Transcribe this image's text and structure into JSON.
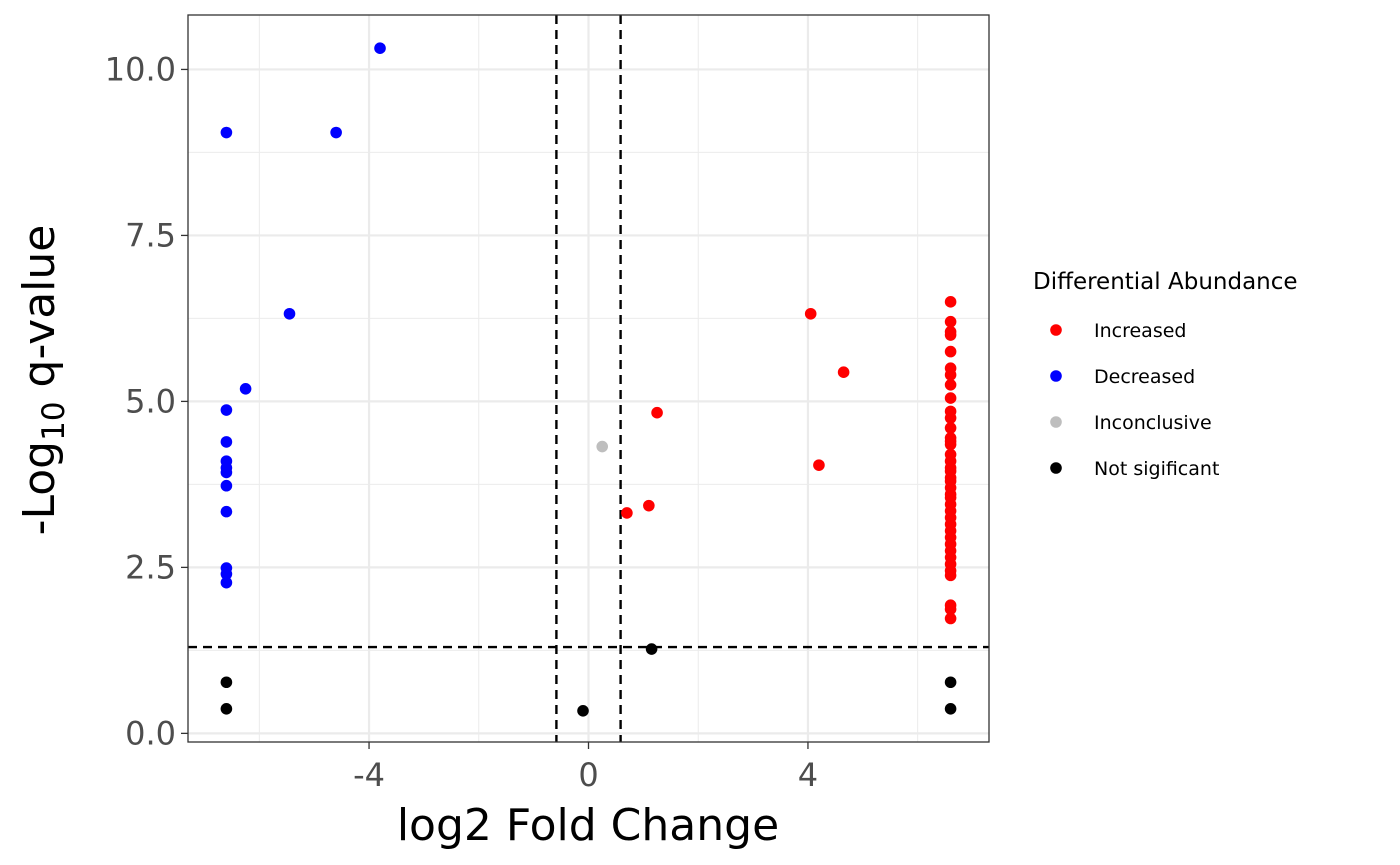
{
  "chart_data": {
    "type": "scatter",
    "xlabel": "log2 Fold Change",
    "ylabel": {
      "prefix": "-Log",
      "subscript": "10",
      "suffix": " q-value"
    },
    "xlim": [
      -7.3,
      7.3
    ],
    "ylim": [
      -0.13,
      10.82
    ],
    "x_ticks": [
      -4,
      0,
      4
    ],
    "x_tick_labels": [
      "-4",
      "0",
      "4"
    ],
    "y_ticks": [
      0,
      2.5,
      5,
      7.5,
      10
    ],
    "y_tick_labels": [
      "0.0",
      "2.5",
      "5.0",
      "7.5",
      "10.0"
    ],
    "x_minor_ticks": [
      -6,
      -2,
      2,
      6
    ],
    "y_minor_ticks": [
      1.25,
      3.75,
      6.25,
      8.75
    ],
    "grid": true,
    "threshold_lines": {
      "vertical": [
        -0.585,
        0.585
      ],
      "horizontal": [
        1.3
      ],
      "style": "dashed",
      "color": "#000000"
    },
    "legend": {
      "title": "Differential Abundance",
      "placement": "right"
    },
    "series": [
      {
        "name": "Increased",
        "color": "#ff0000",
        "points": [
          {
            "x": 4.05,
            "y": 6.32
          },
          {
            "x": 4.65,
            "y": 5.44
          },
          {
            "x": 4.2,
            "y": 4.04
          },
          {
            "x": 1.25,
            "y": 4.83
          },
          {
            "x": 1.1,
            "y": 3.43
          },
          {
            "x": 0.7,
            "y": 3.32
          },
          {
            "x": 6.6,
            "y": 6.5
          },
          {
            "x": 6.6,
            "y": 6.2
          },
          {
            "x": 6.6,
            "y": 6.05
          },
          {
            "x": 6.6,
            "y": 6.0
          },
          {
            "x": 6.6,
            "y": 5.75
          },
          {
            "x": 6.6,
            "y": 5.5
          },
          {
            "x": 6.6,
            "y": 5.4
          },
          {
            "x": 6.6,
            "y": 5.25
          },
          {
            "x": 6.6,
            "y": 5.05
          },
          {
            "x": 6.6,
            "y": 4.85
          },
          {
            "x": 6.6,
            "y": 4.75
          },
          {
            "x": 6.6,
            "y": 4.6
          },
          {
            "x": 6.6,
            "y": 4.45
          },
          {
            "x": 6.6,
            "y": 4.4
          },
          {
            "x": 6.6,
            "y": 4.35
          },
          {
            "x": 6.6,
            "y": 4.2
          },
          {
            "x": 6.6,
            "y": 4.1
          },
          {
            "x": 6.6,
            "y": 4.0
          },
          {
            "x": 6.6,
            "y": 3.95
          },
          {
            "x": 6.6,
            "y": 3.85
          },
          {
            "x": 6.6,
            "y": 3.8
          },
          {
            "x": 6.6,
            "y": 3.7
          },
          {
            "x": 6.6,
            "y": 3.6
          },
          {
            "x": 6.6,
            "y": 3.55
          },
          {
            "x": 6.6,
            "y": 3.45
          },
          {
            "x": 6.6,
            "y": 3.35
          },
          {
            "x": 6.6,
            "y": 3.25
          },
          {
            "x": 6.6,
            "y": 3.15
          },
          {
            "x": 6.6,
            "y": 3.05
          },
          {
            "x": 6.6,
            "y": 2.95
          },
          {
            "x": 6.6,
            "y": 2.85
          },
          {
            "x": 6.6,
            "y": 2.75
          },
          {
            "x": 6.6,
            "y": 2.65
          },
          {
            "x": 6.6,
            "y": 2.55
          },
          {
            "x": 6.6,
            "y": 2.45
          },
          {
            "x": 6.6,
            "y": 2.38
          },
          {
            "x": 6.6,
            "y": 1.93
          },
          {
            "x": 6.6,
            "y": 1.87
          },
          {
            "x": 6.6,
            "y": 1.73
          }
        ]
      },
      {
        "name": "Decreased",
        "color": "#0000ff",
        "points": [
          {
            "x": -3.8,
            "y": 10.32
          },
          {
            "x": -4.6,
            "y": 9.05
          },
          {
            "x": -6.6,
            "y": 9.05
          },
          {
            "x": -5.45,
            "y": 6.32
          },
          {
            "x": -6.25,
            "y": 5.19
          },
          {
            "x": -6.6,
            "y": 4.87
          },
          {
            "x": -6.6,
            "y": 4.39
          },
          {
            "x": -6.6,
            "y": 4.1
          },
          {
            "x": -6.6,
            "y": 4.0
          },
          {
            "x": -6.6,
            "y": 3.93
          },
          {
            "x": -6.6,
            "y": 3.73
          },
          {
            "x": -6.6,
            "y": 3.34
          },
          {
            "x": -6.6,
            "y": 2.49
          },
          {
            "x": -6.6,
            "y": 2.4
          },
          {
            "x": -6.6,
            "y": 2.27
          }
        ]
      },
      {
        "name": "Inconclusive",
        "color": "#bebebe",
        "points": [
          {
            "x": 0.25,
            "y": 4.32
          }
        ]
      },
      {
        "name": "Not sigificant",
        "color": "#000000",
        "points": [
          {
            "x": 1.15,
            "y": 1.27
          },
          {
            "x": -0.1,
            "y": 0.34
          },
          {
            "x": -6.6,
            "y": 0.77
          },
          {
            "x": -6.6,
            "y": 0.37
          },
          {
            "x": 6.6,
            "y": 0.77
          },
          {
            "x": 6.6,
            "y": 0.37
          }
        ]
      }
    ]
  }
}
